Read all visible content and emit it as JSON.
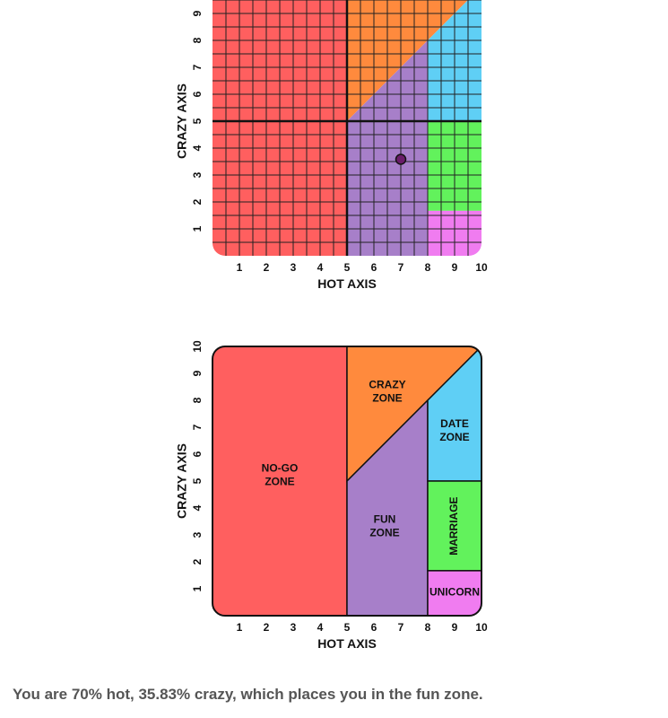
{
  "chart_data": [
    {
      "type": "scatter",
      "xlabel": "HOT AXIS",
      "ylabel": "CRAZY AXIS",
      "xlim": [
        0,
        10
      ],
      "ylim": [
        0,
        10
      ],
      "x_ticks": [
        "1",
        "2",
        "3",
        "4",
        "5",
        "6",
        "7",
        "8",
        "9",
        "10"
      ],
      "y_ticks": [
        "1",
        "2",
        "3",
        "4",
        "5",
        "6",
        "7",
        "8",
        "9"
      ],
      "grid": true,
      "grid_step": 0.5,
      "point": {
        "x": 7,
        "y": 3.583
      },
      "zones": [
        {
          "id": "no-go",
          "color": "#ff5f5f",
          "polygon": [
            [
              0,
              0
            ],
            [
              5,
              0
            ],
            [
              5,
              10
            ],
            [
              0,
              10
            ]
          ]
        },
        {
          "id": "crazy",
          "color": "#ff8a3d",
          "polygon": [
            [
              5,
              5
            ],
            [
              5,
              10
            ],
            [
              10,
              10
            ]
          ]
        },
        {
          "id": "fun",
          "color": "#a77fc9",
          "polygon": [
            [
              5,
              0
            ],
            [
              8,
              0
            ],
            [
              8,
              8
            ],
            [
              5,
              5
            ]
          ]
        },
        {
          "id": "date",
          "color": "#5fcff5",
          "polygon": [
            [
              8,
              5
            ],
            [
              8,
              8
            ],
            [
              10,
              10
            ],
            [
              10,
              5
            ]
          ]
        },
        {
          "id": "marriage",
          "color": "#62f25c",
          "polygon": [
            [
              8,
              1.67
            ],
            [
              10,
              1.67
            ],
            [
              10,
              5
            ],
            [
              8,
              5
            ]
          ]
        },
        {
          "id": "unicorn",
          "color": "#f07cf0",
          "polygon": [
            [
              8,
              0
            ],
            [
              10,
              0
            ],
            [
              10,
              1.67
            ],
            [
              8,
              1.67
            ]
          ]
        }
      ]
    },
    {
      "type": "area",
      "xlabel": "HOT AXIS",
      "ylabel": "CRAZY AXIS",
      "xlim": [
        0,
        10
      ],
      "ylim": [
        0,
        10
      ],
      "x_ticks": [
        "1",
        "2",
        "3",
        "4",
        "5",
        "6",
        "7",
        "8",
        "9",
        "10"
      ],
      "y_ticks": [
        "1",
        "2",
        "3",
        "4",
        "5",
        "6",
        "7",
        "8",
        "9",
        "10"
      ],
      "grid": false,
      "zones": [
        {
          "id": "no-go",
          "color": "#ff5f5f",
          "polygon": [
            [
              0,
              0
            ],
            [
              5,
              0
            ],
            [
              5,
              10
            ],
            [
              0,
              10
            ]
          ],
          "label": [
            "NO-GO",
            "ZONE"
          ],
          "label_at": [
            2.5,
            5.2
          ]
        },
        {
          "id": "crazy",
          "color": "#ff8a3d",
          "polygon": [
            [
              5,
              5
            ],
            [
              5,
              10
            ],
            [
              10,
              10
            ],
            [
              8,
              8
            ]
          ],
          "label": [
            "CRAZY",
            "ZONE"
          ],
          "label_at": [
            6.5,
            8.3
          ]
        },
        {
          "id": "fun",
          "color": "#a77fc9",
          "polygon": [
            [
              5,
              0
            ],
            [
              8,
              0
            ],
            [
              8,
              8
            ],
            [
              5,
              5
            ]
          ],
          "label": [
            "FUN",
            "ZONE"
          ],
          "label_at": [
            6.4,
            3.3
          ]
        },
        {
          "id": "date",
          "color": "#5fcff5",
          "polygon": [
            [
              8,
              5
            ],
            [
              8,
              8
            ],
            [
              10,
              10
            ],
            [
              10,
              5
            ]
          ],
          "label": [
            "DATE",
            "ZONE"
          ],
          "label_at": [
            9,
            6.85
          ]
        },
        {
          "id": "marriage",
          "color": "#62f25c",
          "polygon": [
            [
              8,
              1.67
            ],
            [
              10,
              1.67
            ],
            [
              10,
              5
            ],
            [
              8,
              5
            ]
          ],
          "label": [
            "MARRIAGE"
          ],
          "label_at": [
            9,
            3.33
          ],
          "vertical": true
        },
        {
          "id": "unicorn",
          "color": "#f07cf0",
          "polygon": [
            [
              8,
              0
            ],
            [
              10,
              0
            ],
            [
              10,
              1.67
            ],
            [
              8,
              1.67
            ]
          ],
          "label": [
            "UNICORN"
          ],
          "label_at": [
            9,
            0.85
          ]
        }
      ]
    }
  ],
  "result_text": "You are 70% hot, 35.83% crazy, which places you in the fun zone."
}
